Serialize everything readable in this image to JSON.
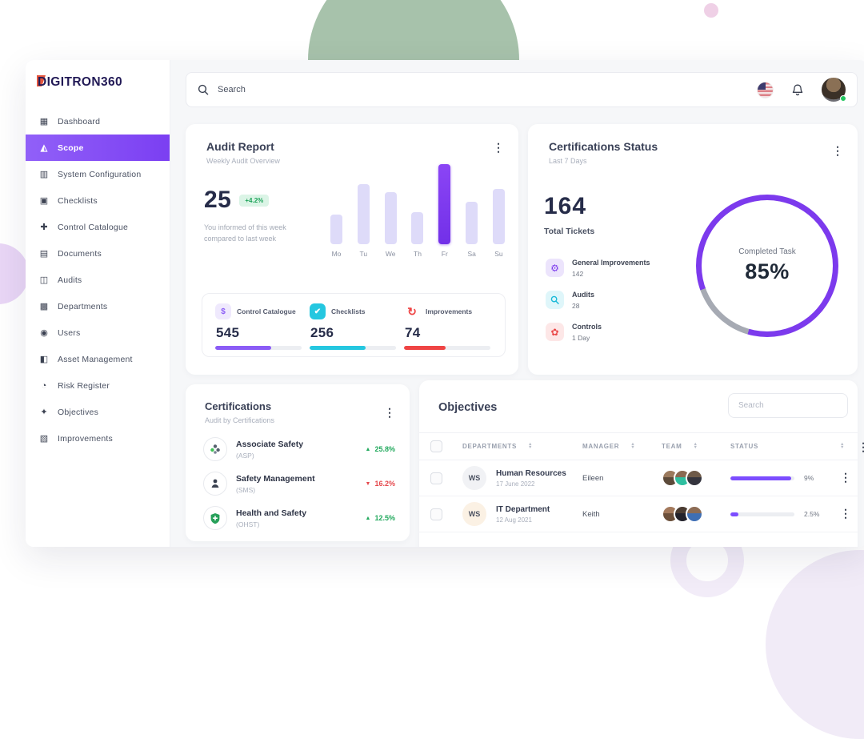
{
  "app": {
    "logo": "DIGITRON360"
  },
  "header": {
    "search_placeholder": "Search"
  },
  "sidebar": {
    "items": [
      {
        "label": "Dashboard",
        "glyph": "▦",
        "icon": "dashboard-icon"
      },
      {
        "label": "Scope",
        "glyph": "◭",
        "icon": "scope-icon"
      },
      {
        "label": "System Configuration",
        "glyph": "▥",
        "icon": "system-config-icon"
      },
      {
        "label": "Checklists",
        "glyph": "▣",
        "icon": "checklists-icon"
      },
      {
        "label": "Control Catalogue",
        "glyph": "✚",
        "icon": "control-catalogue-icon"
      },
      {
        "label": "Documents",
        "glyph": "▤",
        "icon": "documents-icon"
      },
      {
        "label": "Audits",
        "glyph": "◫",
        "icon": "audits-icon"
      },
      {
        "label": "Departments",
        "glyph": "▩",
        "icon": "departments-icon"
      },
      {
        "label": "Users",
        "glyph": "◉",
        "icon": "users-icon"
      },
      {
        "label": "Asset Management",
        "glyph": "◧",
        "icon": "asset-management-icon"
      },
      {
        "label": "Risk Register",
        "glyph": "◔",
        "icon": "risk-register-icon"
      },
      {
        "label": "Objectives",
        "glyph": "✦",
        "icon": "objectives-icon"
      },
      {
        "label": "Improvements",
        "glyph": "▧",
        "icon": "improvements-icon"
      }
    ]
  },
  "audit_report": {
    "title": "Audit Report",
    "subtitle": "Weekly Audit Overview",
    "big_number": "25",
    "badge": "+4.2%",
    "caption_line1": "You informed of this week",
    "caption_line2": "compared to last week",
    "chart_data": {
      "type": "bar",
      "categories": [
        "Mo",
        "Tu",
        "We",
        "Th",
        "Fr",
        "Sa",
        "Su"
      ],
      "values": [
        37,
        75,
        65,
        40,
        100,
        53,
        69
      ],
      "highlight_index": 4,
      "bar_color": "#dedbf9",
      "highlight_color": "#7c3aed",
      "ylim": [
        0,
        100
      ]
    },
    "stats": [
      {
        "label": "Control Catalogue",
        "value": "545",
        "glyph": "$",
        "pct": 65,
        "color": "#8b5cf6"
      },
      {
        "label": "Checklists",
        "value": "256",
        "glyph": "✔",
        "pct": 65,
        "color": "#25c7e0"
      },
      {
        "label": "Improvements",
        "value": "74",
        "glyph": "↻",
        "pct": 48,
        "color": "#ef4444"
      }
    ]
  },
  "cert_status": {
    "title": "Certifications Status",
    "subtitle": "Last 7 Days",
    "total_value": "164",
    "total_label": "Total Tickets",
    "donut": {
      "label": "Completed Task",
      "value": "85%",
      "pct": 85,
      "color": "#7c3aed",
      "rest_color": "#a6aab3"
    },
    "legend": [
      {
        "label": "General Improvements",
        "value": "142",
        "glyph": "⚙",
        "icon": "gear-icon"
      },
      {
        "label": "Audits",
        "value": "28",
        "glyph": "",
        "icon": "magnifier-icon"
      },
      {
        "label": "Controls",
        "value": "1 Day",
        "glyph": "✿",
        "icon": "control-flower-icon"
      }
    ]
  },
  "certifications": {
    "title": "Certifications",
    "subtitle": "Audit by Certifications",
    "items": [
      {
        "name": "Associate Safety",
        "code": "(ASP)",
        "trend": "up",
        "pct": "25.8%"
      },
      {
        "name": "Safety Management",
        "code": "(SMS)",
        "trend": "down",
        "pct": "16.2%"
      },
      {
        "name": "Health and Safety",
        "code": "(OHST)",
        "trend": "up",
        "pct": "12.5%"
      }
    ]
  },
  "objectives": {
    "title": "Objectives",
    "search_placeholder": "Search",
    "columns": [
      "DEPARTMENTS",
      "MANAGER",
      "TEAM",
      "STATUS"
    ],
    "rows": [
      {
        "badge": "WS",
        "dept": "Human Resources",
        "date": "17 June 2022",
        "manager": "Eileen",
        "progress": 95,
        "pct": "9%"
      },
      {
        "badge": "WS",
        "dept": "IT Department",
        "date": "12 Aug 2021",
        "manager": "Keith",
        "progress": 12,
        "pct": "2.5%"
      }
    ]
  }
}
